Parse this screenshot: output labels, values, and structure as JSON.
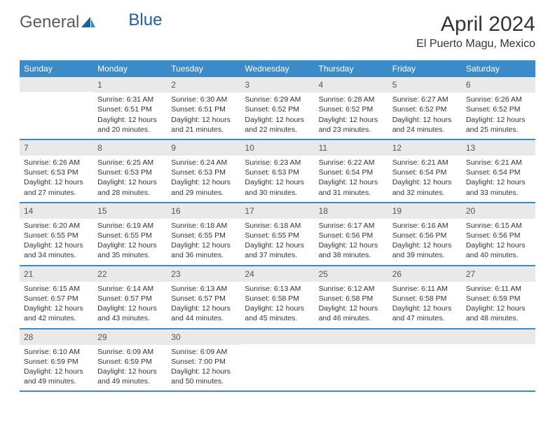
{
  "logo": {
    "text1": "General",
    "text2": "Blue"
  },
  "title": "April 2024",
  "location": "El Puerto Magu, Mexico",
  "header_bg": "#3b8bc9",
  "daynum_bg": "#e9e9e9",
  "weekdays": [
    "Sunday",
    "Monday",
    "Tuesday",
    "Wednesday",
    "Thursday",
    "Friday",
    "Saturday"
  ],
  "weeks": [
    [
      {
        "n": "",
        "lines": []
      },
      {
        "n": "1",
        "lines": [
          "Sunrise: 6:31 AM",
          "Sunset: 6:51 PM",
          "Daylight: 12 hours",
          "and 20 minutes."
        ]
      },
      {
        "n": "2",
        "lines": [
          "Sunrise: 6:30 AM",
          "Sunset: 6:51 PM",
          "Daylight: 12 hours",
          "and 21 minutes."
        ]
      },
      {
        "n": "3",
        "lines": [
          "Sunrise: 6:29 AM",
          "Sunset: 6:52 PM",
          "Daylight: 12 hours",
          "and 22 minutes."
        ]
      },
      {
        "n": "4",
        "lines": [
          "Sunrise: 6:28 AM",
          "Sunset: 6:52 PM",
          "Daylight: 12 hours",
          "and 23 minutes."
        ]
      },
      {
        "n": "5",
        "lines": [
          "Sunrise: 6:27 AM",
          "Sunset: 6:52 PM",
          "Daylight: 12 hours",
          "and 24 minutes."
        ]
      },
      {
        "n": "6",
        "lines": [
          "Sunrise: 6:26 AM",
          "Sunset: 6:52 PM",
          "Daylight: 12 hours",
          "and 25 minutes."
        ]
      }
    ],
    [
      {
        "n": "7",
        "lines": [
          "Sunrise: 6:26 AM",
          "Sunset: 6:53 PM",
          "Daylight: 12 hours",
          "and 27 minutes."
        ]
      },
      {
        "n": "8",
        "lines": [
          "Sunrise: 6:25 AM",
          "Sunset: 6:53 PM",
          "Daylight: 12 hours",
          "and 28 minutes."
        ]
      },
      {
        "n": "9",
        "lines": [
          "Sunrise: 6:24 AM",
          "Sunset: 6:53 PM",
          "Daylight: 12 hours",
          "and 29 minutes."
        ]
      },
      {
        "n": "10",
        "lines": [
          "Sunrise: 6:23 AM",
          "Sunset: 6:53 PM",
          "Daylight: 12 hours",
          "and 30 minutes."
        ]
      },
      {
        "n": "11",
        "lines": [
          "Sunrise: 6:22 AM",
          "Sunset: 6:54 PM",
          "Daylight: 12 hours",
          "and 31 minutes."
        ]
      },
      {
        "n": "12",
        "lines": [
          "Sunrise: 6:21 AM",
          "Sunset: 6:54 PM",
          "Daylight: 12 hours",
          "and 32 minutes."
        ]
      },
      {
        "n": "13",
        "lines": [
          "Sunrise: 6:21 AM",
          "Sunset: 6:54 PM",
          "Daylight: 12 hours",
          "and 33 minutes."
        ]
      }
    ],
    [
      {
        "n": "14",
        "lines": [
          "Sunrise: 6:20 AM",
          "Sunset: 6:55 PM",
          "Daylight: 12 hours",
          "and 34 minutes."
        ]
      },
      {
        "n": "15",
        "lines": [
          "Sunrise: 6:19 AM",
          "Sunset: 6:55 PM",
          "Daylight: 12 hours",
          "and 35 minutes."
        ]
      },
      {
        "n": "16",
        "lines": [
          "Sunrise: 6:18 AM",
          "Sunset: 6:55 PM",
          "Daylight: 12 hours",
          "and 36 minutes."
        ]
      },
      {
        "n": "17",
        "lines": [
          "Sunrise: 6:18 AM",
          "Sunset: 6:55 PM",
          "Daylight: 12 hours",
          "and 37 minutes."
        ]
      },
      {
        "n": "18",
        "lines": [
          "Sunrise: 6:17 AM",
          "Sunset: 6:56 PM",
          "Daylight: 12 hours",
          "and 38 minutes."
        ]
      },
      {
        "n": "19",
        "lines": [
          "Sunrise: 6:16 AM",
          "Sunset: 6:56 PM",
          "Daylight: 12 hours",
          "and 39 minutes."
        ]
      },
      {
        "n": "20",
        "lines": [
          "Sunrise: 6:15 AM",
          "Sunset: 6:56 PM",
          "Daylight: 12 hours",
          "and 40 minutes."
        ]
      }
    ],
    [
      {
        "n": "21",
        "lines": [
          "Sunrise: 6:15 AM",
          "Sunset: 6:57 PM",
          "Daylight: 12 hours",
          "and 42 minutes."
        ]
      },
      {
        "n": "22",
        "lines": [
          "Sunrise: 6:14 AM",
          "Sunset: 6:57 PM",
          "Daylight: 12 hours",
          "and 43 minutes."
        ]
      },
      {
        "n": "23",
        "lines": [
          "Sunrise: 6:13 AM",
          "Sunset: 6:57 PM",
          "Daylight: 12 hours",
          "and 44 minutes."
        ]
      },
      {
        "n": "24",
        "lines": [
          "Sunrise: 6:13 AM",
          "Sunset: 6:58 PM",
          "Daylight: 12 hours",
          "and 45 minutes."
        ]
      },
      {
        "n": "25",
        "lines": [
          "Sunrise: 6:12 AM",
          "Sunset: 6:58 PM",
          "Daylight: 12 hours",
          "and 46 minutes."
        ]
      },
      {
        "n": "26",
        "lines": [
          "Sunrise: 6:11 AM",
          "Sunset: 6:58 PM",
          "Daylight: 12 hours",
          "and 47 minutes."
        ]
      },
      {
        "n": "27",
        "lines": [
          "Sunrise: 6:11 AM",
          "Sunset: 6:59 PM",
          "Daylight: 12 hours",
          "and 48 minutes."
        ]
      }
    ],
    [
      {
        "n": "28",
        "lines": [
          "Sunrise: 6:10 AM",
          "Sunset: 6:59 PM",
          "Daylight: 12 hours",
          "and 49 minutes."
        ]
      },
      {
        "n": "29",
        "lines": [
          "Sunrise: 6:09 AM",
          "Sunset: 6:59 PM",
          "Daylight: 12 hours",
          "and 49 minutes."
        ]
      },
      {
        "n": "30",
        "lines": [
          "Sunrise: 6:09 AM",
          "Sunset: 7:00 PM",
          "Daylight: 12 hours",
          "and 50 minutes."
        ]
      },
      {
        "n": "",
        "lines": []
      },
      {
        "n": "",
        "lines": []
      },
      {
        "n": "",
        "lines": []
      },
      {
        "n": "",
        "lines": []
      }
    ]
  ]
}
